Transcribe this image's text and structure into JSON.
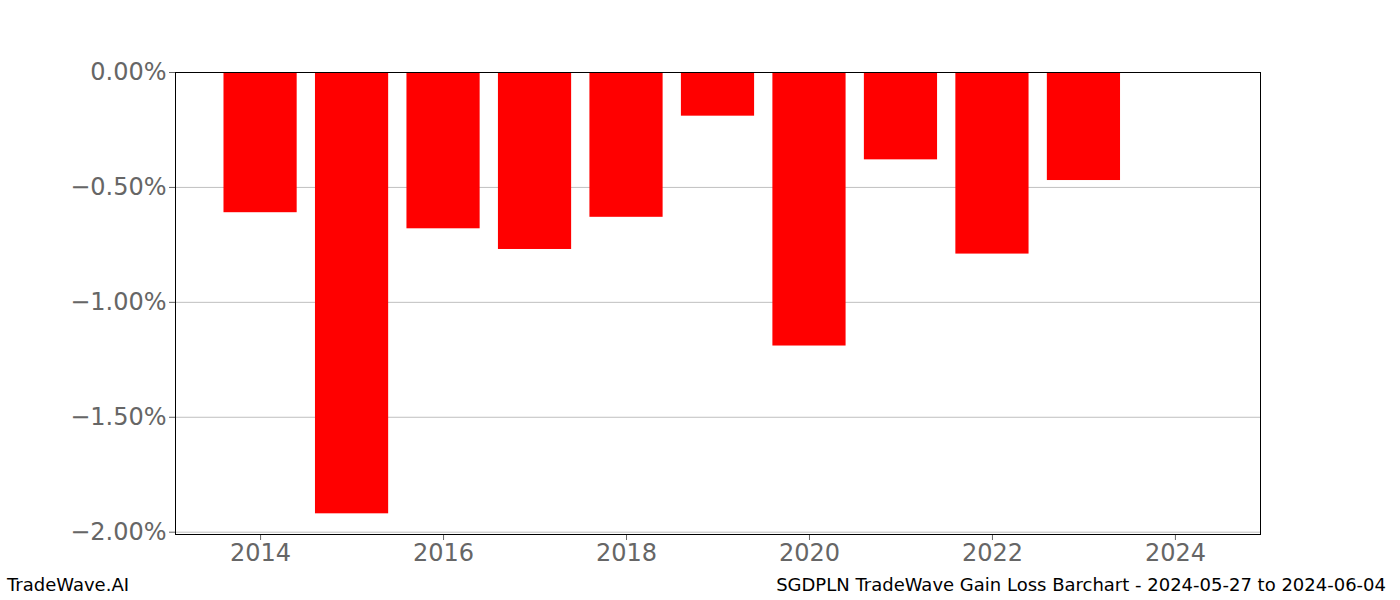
{
  "chart_data": {
    "type": "bar",
    "title": "SGDPLN TradeWave Gain Loss Barchart - 2024-05-27 to 2024-06-04",
    "caption": "TradeWave.AI",
    "x": [
      2014,
      2015,
      2016,
      2017,
      2018,
      2019,
      2020,
      2021,
      2022,
      2023
    ],
    "values": [
      -0.61,
      -1.92,
      -0.68,
      -0.77,
      -0.63,
      -0.19,
      -1.19,
      -0.38,
      -0.79,
      -0.47
    ],
    "color": "#ff0000",
    "xlim": [
      2013.07,
      2024.93
    ],
    "xticks": [
      2014,
      2016,
      2018,
      2020,
      2022,
      2024
    ],
    "ylim": [
      -2.01,
      0
    ],
    "yticks": [
      {
        "value": 0,
        "label": "0.00%"
      },
      {
        "value": -0.5,
        "label": "−0.50%"
      },
      {
        "value": -1,
        "label": "−1.00%"
      },
      {
        "value": -1.5,
        "label": "−1.50%"
      },
      {
        "value": -2,
        "label": "−2.00%"
      }
    ],
    "grid": true
  }
}
